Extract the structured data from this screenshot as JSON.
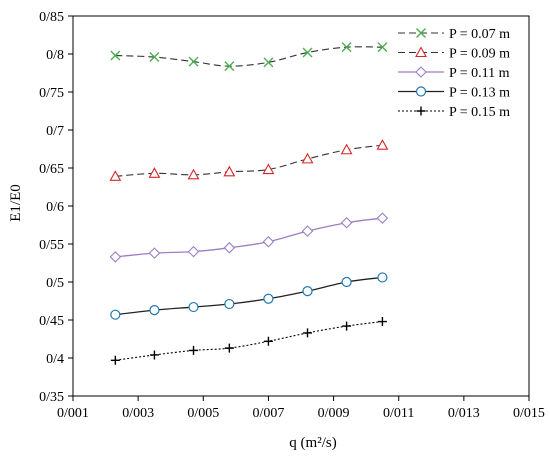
{
  "chart_data": {
    "type": "line",
    "xlabel": "q (m²/s)",
    "ylabel": "E1/E0",
    "xlim": [
      0.001,
      0.015
    ],
    "ylim": [
      0.35,
      0.85
    ],
    "x_ticks": [
      0.001,
      0.003,
      0.005,
      0.007,
      0.009,
      0.011,
      0.013,
      0.015
    ],
    "x_tick_labels": [
      "0/001",
      "0/003",
      "0/005",
      "0/007",
      "0/009",
      "0/011",
      "0/013",
      "0/015"
    ],
    "y_ticks": [
      0.35,
      0.4,
      0.45,
      0.5,
      0.55,
      0.6,
      0.65,
      0.7,
      0.75,
      0.8,
      0.85
    ],
    "y_tick_labels": [
      "0/35",
      "0/4",
      "0/45",
      "0/5",
      "0/55",
      "0/6",
      "0/65",
      "0/7",
      "0/75",
      "0/8",
      "0/85"
    ],
    "grid": false,
    "legend_position": "top-right",
    "x": [
      0.0023,
      0.0035,
      0.0047,
      0.0058,
      0.007,
      0.0082,
      0.0094,
      0.0105
    ],
    "series": [
      {
        "name": "P = 0.07 m",
        "values": [
          0.798,
          0.796,
          0.79,
          0.784,
          0.789,
          0.802,
          0.809,
          0.809
        ],
        "color": "#4caf50",
        "marker": "x",
        "dash": "dashed"
      },
      {
        "name": "P = 0.09 m",
        "values": [
          0.639,
          0.643,
          0.641,
          0.645,
          0.648,
          0.662,
          0.674,
          0.68
        ],
        "color": "#d62728",
        "marker": "triangle",
        "dash": "dashed"
      },
      {
        "name": "P = 0.11 m",
        "values": [
          0.533,
          0.538,
          0.54,
          0.545,
          0.553,
          0.567,
          0.578,
          0.584
        ],
        "color": "#9b7fc4",
        "marker": "diamond",
        "dash": "solid"
      },
      {
        "name": "P = 0.13 m",
        "values": [
          0.457,
          0.463,
          0.467,
          0.471,
          0.478,
          0.488,
          0.5,
          0.506
        ],
        "color": "#1f78b4",
        "line_color": "#222222",
        "marker": "circle",
        "dash": "solid"
      },
      {
        "name": "P = 0.15 m",
        "values": [
          0.397,
          0.404,
          0.41,
          0.413,
          0.422,
          0.433,
          0.442,
          0.448
        ],
        "color": "#000000",
        "marker": "plus",
        "dash": "dotted"
      }
    ]
  }
}
